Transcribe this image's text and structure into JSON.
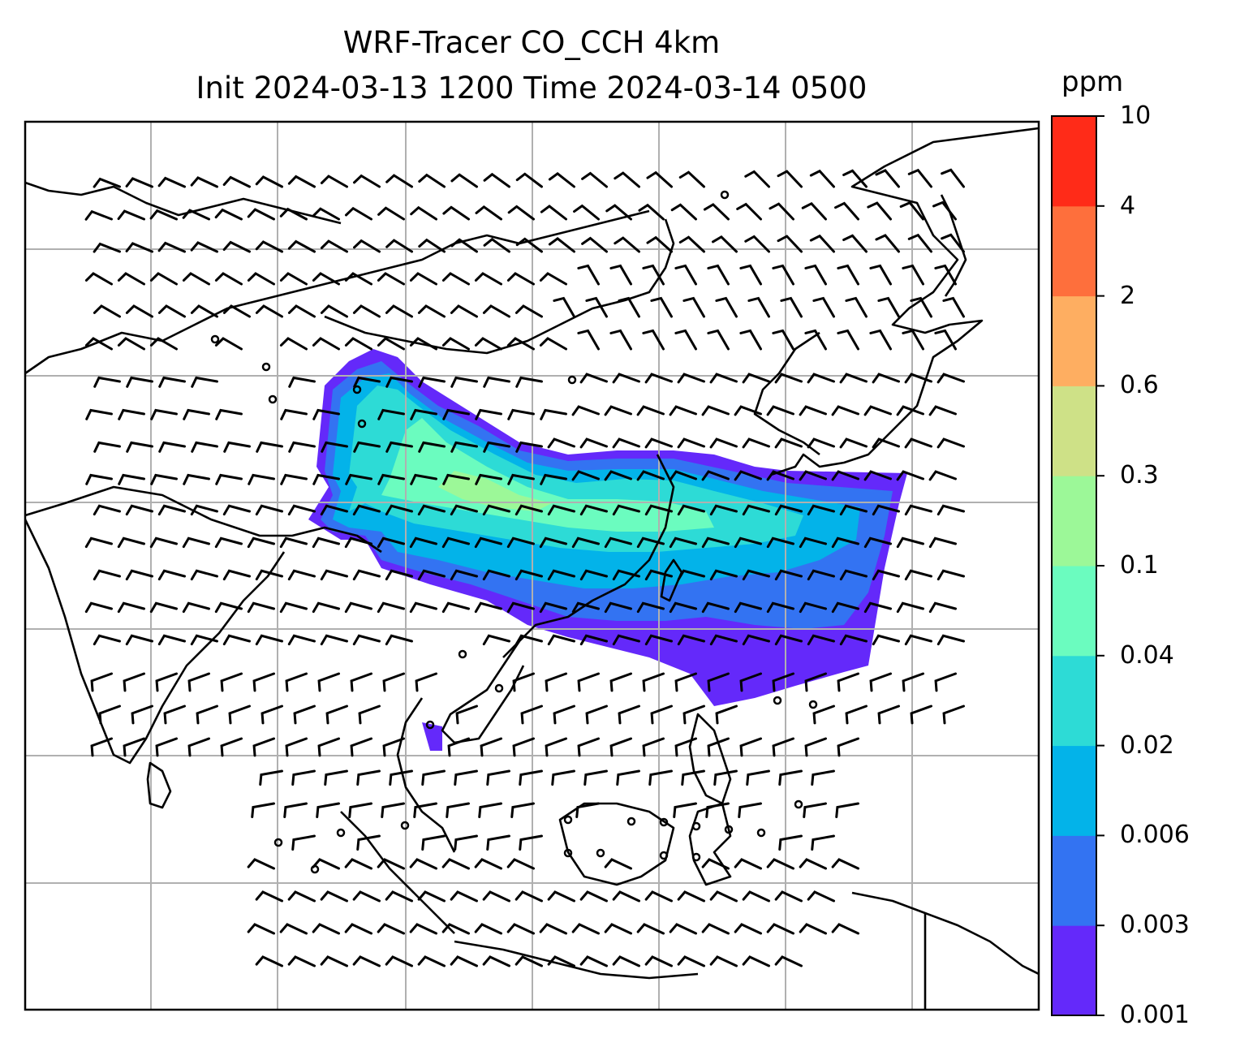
{
  "title_line1": "WRF-Tracer CO_CCH 4km",
  "title_line2": "Init 2024-03-13 1200 Time 2024-03-14 0500",
  "colorbar": {
    "units": "ppm",
    "levels": [
      "0.001",
      "0.003",
      "0.006",
      "0.02",
      "0.04",
      "0.1",
      "0.3",
      "0.6",
      "2",
      "4",
      "10"
    ],
    "colors": [
      "#6429fa",
      "#3373f2",
      "#03b3e9",
      "#2ddbd6",
      "#6bfcbf",
      "#9cf898",
      "#cee187",
      "#feae61",
      "#fe6f3c",
      "#ff2b18"
    ]
  },
  "map": {
    "gridlines": true,
    "coastline_color": "#000000",
    "grid_color": "#b0b0b0"
  }
}
